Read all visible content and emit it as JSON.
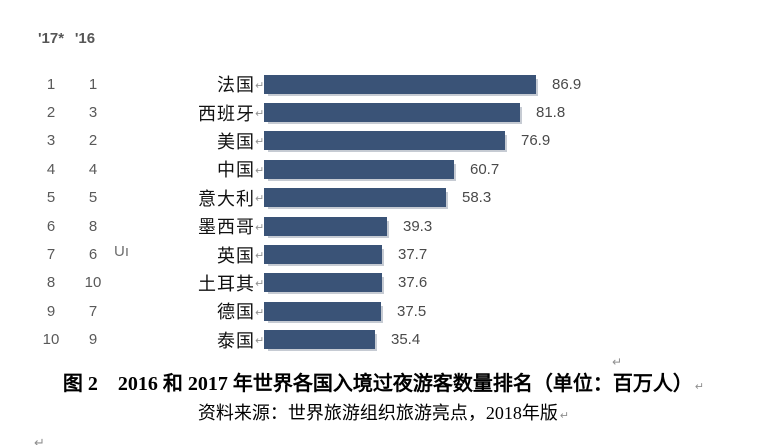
{
  "header": {
    "rank_2017_label": "'17*",
    "rank_2016_label": "'16"
  },
  "chart_data": {
    "type": "bar",
    "orientation": "horizontal",
    "categories": [
      "法国",
      "西班牙",
      "美国",
      "中国",
      "意大利",
      "墨西哥",
      "英国",
      "土耳其",
      "德国",
      "泰国"
    ],
    "values": [
      86.9,
      81.8,
      76.9,
      60.7,
      58.3,
      39.3,
      37.7,
      37.6,
      37.5,
      35.4
    ],
    "rank_2017": [
      "1",
      "2",
      "3",
      "4",
      "5",
      "6",
      "7",
      "8",
      "9",
      "10"
    ],
    "rank_2016": [
      "1",
      "3",
      "2",
      "4",
      "5",
      "8",
      "6",
      "10",
      "7",
      "9"
    ],
    "title": "2016 和 2017 年世界各国入境过夜游客数量排名（单位：百万人）",
    "unit": "百万人",
    "xlim": [
      0,
      95
    ],
    "bar_color": "#3a5377",
    "value_labels_shown": true,
    "grid": false,
    "legend": false
  },
  "stray_text": "Uı",
  "paragraph_mark": "↵",
  "caption": {
    "line1": "图 2　2016 和 2017 年世界各国入境过夜游客数量排名（单位：百万人）",
    "line2": "资料来源：世界旅游组织旅游亮点，2018年版"
  }
}
